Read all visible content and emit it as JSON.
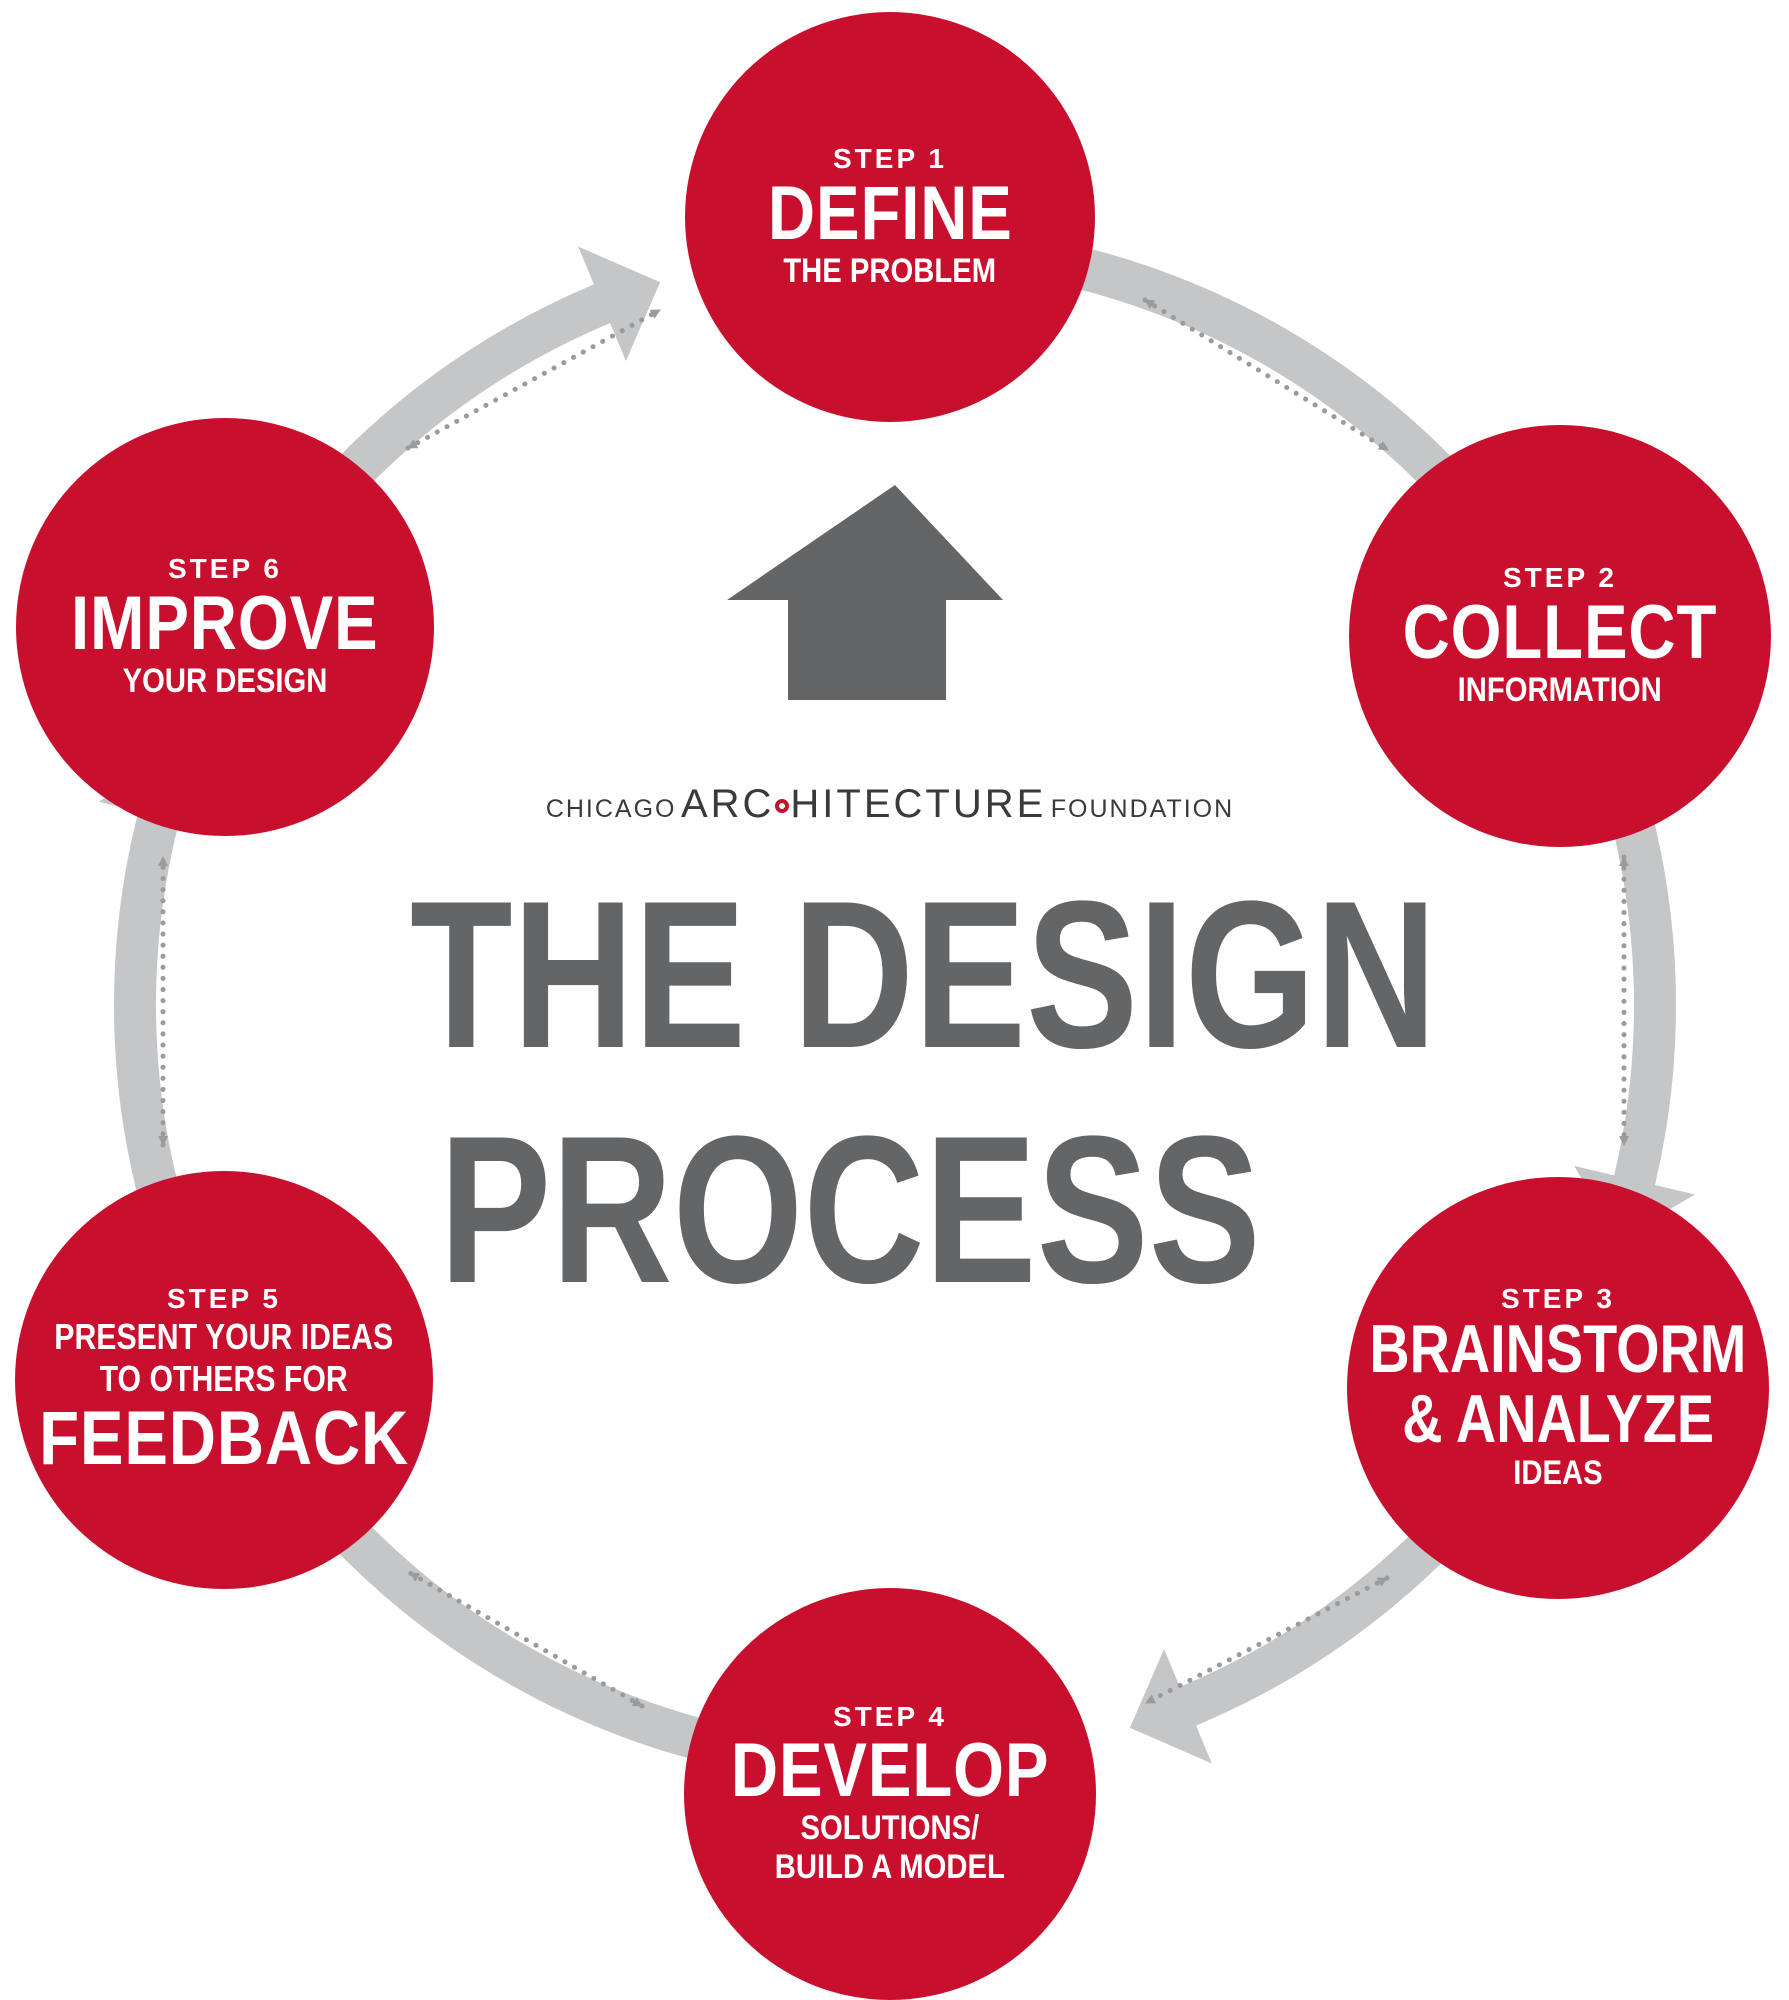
{
  "colors": {
    "circle": "#c8102e",
    "arrow": "#c5c6c8",
    "dotted": "#9a9b9d",
    "center_arrow": "#646567",
    "title": "#646567"
  },
  "steps": [
    {
      "step": "STEP 1",
      "lines": [
        "DEFINE",
        "THE PROBLEM"
      ]
    },
    {
      "step": "STEP 2",
      "lines": [
        "COLLECT",
        "INFORMATION"
      ]
    },
    {
      "step": "STEP 3",
      "lines": [
        "BRAINSTORM",
        "& ANALYZE",
        "IDEAS"
      ]
    },
    {
      "step": "STEP 4",
      "lines": [
        "DEVELOP",
        "SOLUTIONS/",
        "BUILD A MODEL"
      ]
    },
    {
      "step": "STEP 5",
      "lines": [
        "PRESENT YOUR IDEAS",
        "TO OTHERS FOR",
        "FEEDBACK"
      ]
    },
    {
      "step": "STEP 6",
      "lines": [
        "IMPROVE",
        "YOUR DESIGN"
      ]
    }
  ],
  "caption": {
    "left": "CHICAGO",
    "center_a": "ARC",
    "center_b": "HITECTURE",
    "right": "FOUNDATION"
  },
  "title": {
    "line1": "THE DESIGN",
    "line2": "PROCESS"
  }
}
